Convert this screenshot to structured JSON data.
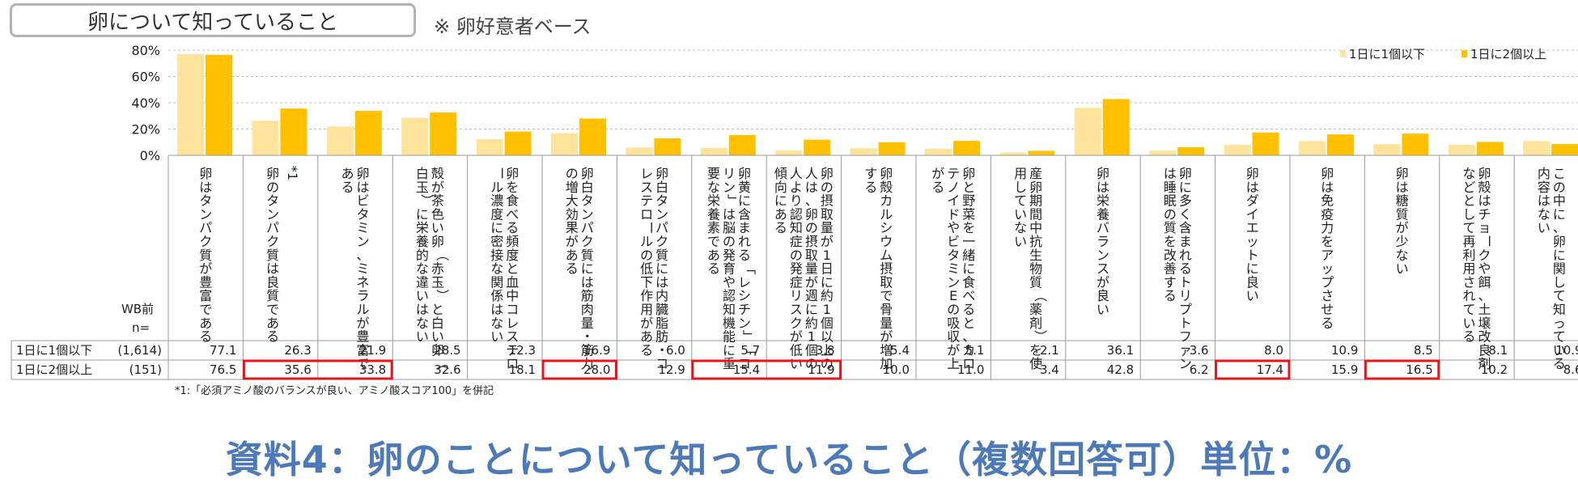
{
  "header": {
    "title": "卵について知っていること",
    "base_note": "※ 卵好意者ベース"
  },
  "chart_data": {
    "type": "bar",
    "ylim": [
      0,
      80
    ],
    "yticks": [
      "0%",
      "20%",
      "40%",
      "60%",
      "80%"
    ],
    "grid": true,
    "legend_position": "top-right",
    "categories": [
      "卵はタンパク質が豊富である",
      "*1 卵のタンパク質は良質である",
      "卵はビタミン、ミネラルが豊富である",
      "殻が茶色い卵（赤玉）と白い卵（白玉）に栄養的な違いはない",
      "卵を食べる頻度と血中コレステロール濃度に密接な関係はない",
      "卵白タンパク質には筋肉量・筋力の増大効果がある",
      "卵白タンパク質には内臓脂肪・コレステロールの低下作用がある",
      "卵黄に含まれる「レシチン」「コリン」は脳の発育や認知機能に重要な栄養素である",
      "卵の摂取量が1日に約1個以上の人は、卵の摂取量が週に約1個の人より認知症の発症リスクが低い傾向にある",
      "卵殻カルシウム摂取で骨量が増加する",
      "卵と野菜を一緒に食べると、カロテノイドやビタミンEの吸収が上がる",
      "産卵期間中抗生物質（薬剤）を使用していない",
      "卵は栄養バランスが良い",
      "卵に多く含まれるトリプトファンは睡眠の質を改善する",
      "卵はダイエットに良い",
      "卵は免疫力をアップさせる",
      "卵は糖質が少ない",
      "卵殻はチョークや餌、土壌改良剤などとして再利用されている",
      "この中に、卵に関して知っている内容はない"
    ],
    "series": [
      {
        "name": "1日に1個以下",
        "n": "(1,614)",
        "color": "#fde39b",
        "values": [
          77.1,
          26.3,
          21.9,
          28.5,
          12.3,
          16.9,
          6.0,
          5.7,
          3.8,
          5.4,
          5.1,
          2.1,
          36.1,
          3.6,
          8.0,
          10.9,
          8.5,
          8.1,
          10.9
        ],
        "labels": [
          "77.1",
          "26.3",
          "21.9",
          "28.5",
          "12.3",
          "16.9",
          "6.0",
          "5.7",
          "3.8",
          "5.4",
          "5.1",
          "2.1",
          "36.1",
          "3.6",
          "8.0",
          "10.9",
          "8.5",
          "8.1",
          "10.9"
        ]
      },
      {
        "name": "1日に2個以上",
        "n": "(151)",
        "color": "#ffc000",
        "values": [
          76.5,
          35.6,
          33.8,
          32.6,
          18.1,
          28.0,
          12.9,
          15.4,
          11.9,
          10.0,
          11.0,
          3.4,
          42.8,
          6.2,
          17.4,
          15.9,
          16.5,
          10.2,
          8.6
        ],
        "labels": [
          "76.5",
          "35.6",
          "33.8",
          "32.6",
          "18.1",
          "28.0",
          "12.9",
          "15.4",
          "11.9",
          "10.0",
          "11.0",
          "3.4",
          "42.8",
          "6.2",
          "17.4",
          "15.9",
          "16.5",
          "10.2",
          "8.6"
        ]
      }
    ],
    "highlighted_row2": [
      [
        1,
        2
      ],
      [
        5,
        5
      ],
      [
        7,
        8
      ],
      [
        14,
        14
      ],
      [
        16,
        16
      ]
    ],
    "highlight_color": "#e8141b",
    "table_header": {
      "stub": "WB前",
      "n": "n="
    }
  },
  "footnote": "*1:「必須アミノ酸のバランスが良い、アミノ酸スコア100」を併記",
  "caption": "資料4：卵のことについて知っていること（複数回答可）単位：%"
}
